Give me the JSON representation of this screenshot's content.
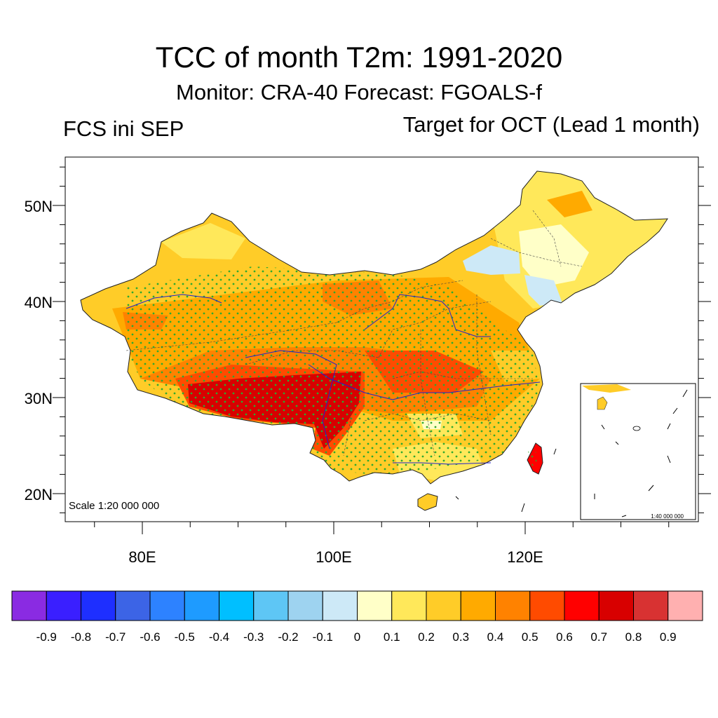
{
  "title": "TCC of month T2m: 1991-2020",
  "subtitle": "Monitor: CRA-40   Forecast: FGOALS-f",
  "left_label": "FCS ini SEP",
  "right_label": "Target for OCT (Lead 1 month)",
  "map": {
    "lat_labels": [
      "50N",
      "40N",
      "30N",
      "20N"
    ],
    "lon_labels": [
      "80E",
      "100E",
      "120E"
    ],
    "scale_main": "Scale 1:20 000 000",
    "scale_inset": "1:40 000 000"
  },
  "colorbar": {
    "colors": [
      "#8a2be2",
      "#3a1fff",
      "#1e2fff",
      "#3c64e6",
      "#2d82ff",
      "#1e9bff",
      "#00bfff",
      "#5ec6f5",
      "#9ed3f0",
      "#cde9f7",
      "#ffffc8",
      "#ffe85a",
      "#ffcc28",
      "#ffaa00",
      "#ff8200",
      "#ff4b00",
      "#ff0000",
      "#d80000",
      "#d83232",
      "#ffb0b0"
    ],
    "labels": [
      "-0.9",
      "-0.8",
      "-0.7",
      "-0.6",
      "-0.5",
      "-0.4",
      "-0.3",
      "-0.2",
      "-0.1",
      "0",
      "0.1",
      "0.2",
      "0.3",
      "0.4",
      "0.5",
      "0.6",
      "0.7",
      "0.8",
      "0.9"
    ]
  }
}
